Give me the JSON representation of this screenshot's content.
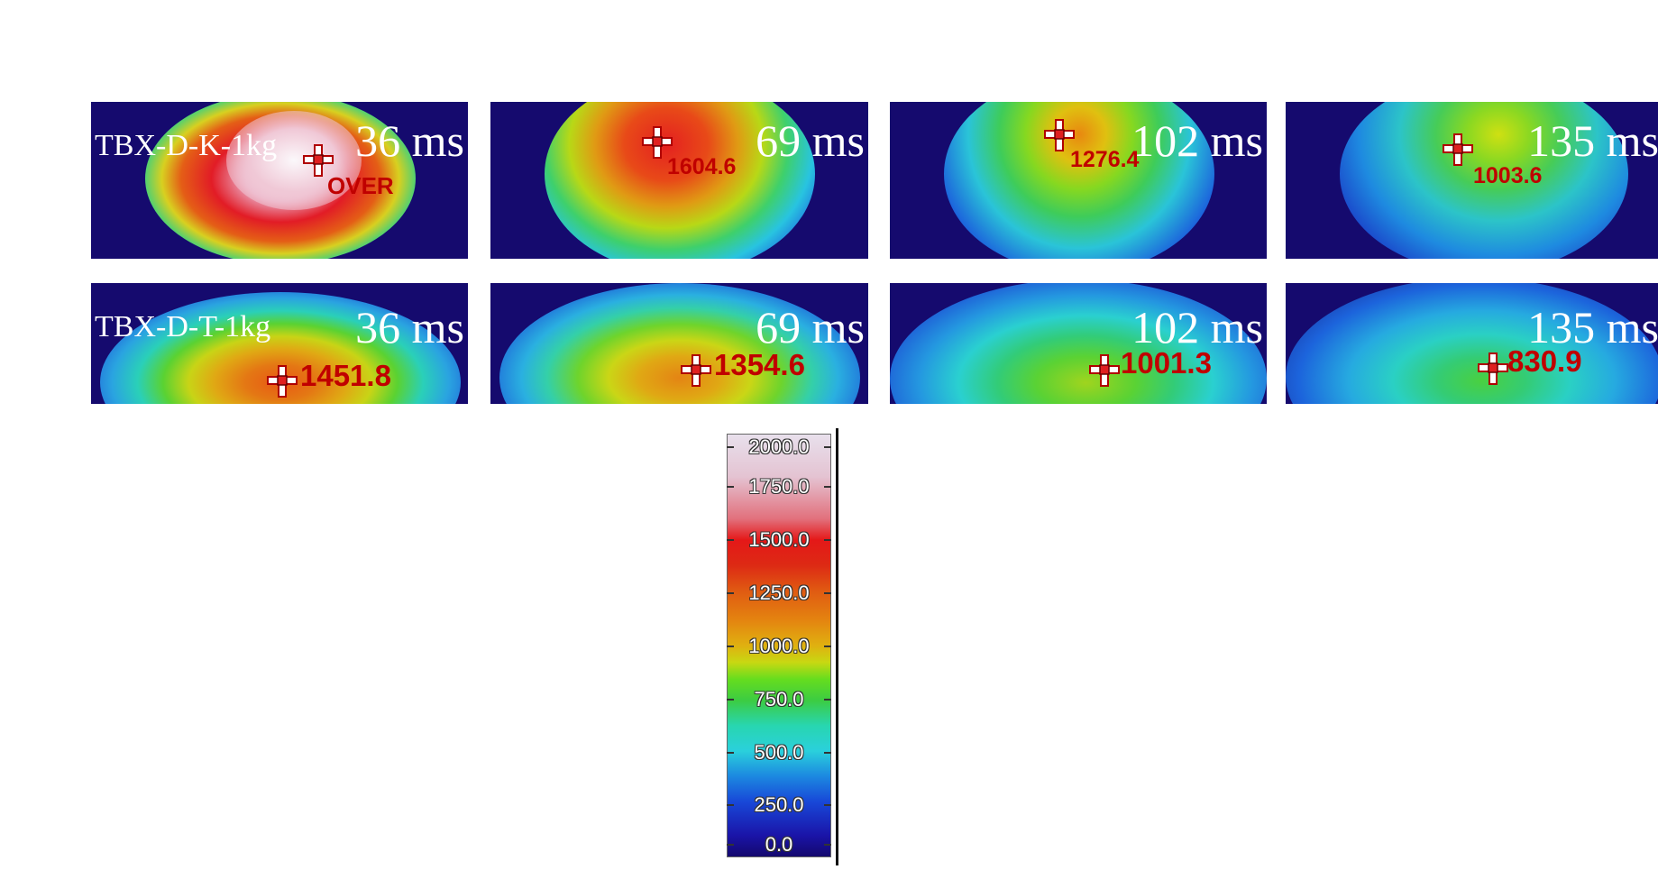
{
  "rows": [
    {
      "series": "TBX-D-K-1kg",
      "frames": [
        {
          "time": "36 ms",
          "reading": "",
          "status": "OVER"
        },
        {
          "time": "69 ms",
          "reading": "1604.6"
        },
        {
          "time": "102 ms",
          "reading": "1276.4"
        },
        {
          "time": "135 ms",
          "reading": "1003.6"
        }
      ]
    },
    {
      "series": "TBX-D-T-1kg",
      "frames": [
        {
          "time": "36 ms",
          "reading": "1451.8"
        },
        {
          "time": "69 ms",
          "reading": "1354.6"
        },
        {
          "time": "102 ms",
          "reading": "1001.3"
        },
        {
          "time": "135 ms",
          "reading": "830.9"
        }
      ]
    }
  ],
  "colorbar": {
    "min": 0,
    "max": 2000,
    "ticks": [
      "2000.0",
      "1750.0",
      "1500.0",
      "1250.0",
      "1000.0",
      "750.0",
      "500.0",
      "250.0",
      "0.0"
    ]
  },
  "colors": {
    "background": "#150a6e",
    "reading_text": "#c00000",
    "label_text": "#ffffff"
  },
  "icons": {
    "marker": "crosshair-icon"
  }
}
